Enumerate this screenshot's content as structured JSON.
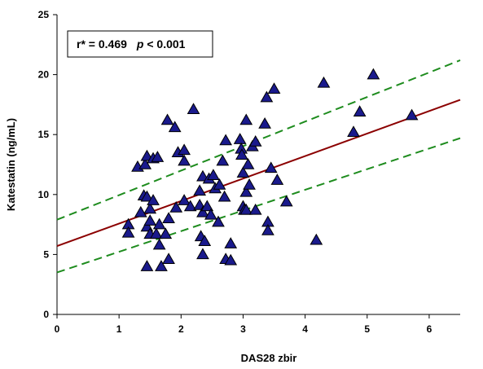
{
  "chart_data": {
    "type": "scatter",
    "xlabel": "DAS28 zbir",
    "ylabel": "Katestatin (ng/mL)",
    "xlim": [
      0,
      6.5
    ],
    "ylim": [
      0,
      25
    ],
    "x_ticks": [
      "0",
      "1",
      "2",
      "3",
      "4",
      "5",
      "6"
    ],
    "y_ticks": [
      "0",
      "5",
      "10",
      "15",
      "20",
      "25"
    ],
    "grid": false,
    "marker": "triangle",
    "colors": {
      "marker_fill": "#1a1a8c",
      "marker_stroke": "#000000",
      "fit_line": "#8b0000",
      "ci_line": "#1e8c1e"
    },
    "annotation": {
      "r_text": "r* = 0.469",
      "p_symbol": "p",
      "p_text": " < 0.001"
    },
    "fit_line": {
      "x": [
        0,
        6.5
      ],
      "y": [
        5.7,
        17.9
      ]
    },
    "ci_upper": {
      "x": [
        0,
        6.5
      ],
      "y": [
        7.9,
        21.2
      ]
    },
    "ci_lower": {
      "x": [
        0,
        6.5
      ],
      "y": [
        3.5,
        14.7
      ]
    },
    "points": [
      {
        "x": 1.15,
        "y": 7.5
      },
      {
        "x": 1.15,
        "y": 6.8
      },
      {
        "x": 1.3,
        "y": 12.3
      },
      {
        "x": 1.35,
        "y": 8.5
      },
      {
        "x": 1.4,
        "y": 9.9
      },
      {
        "x": 1.42,
        "y": 12.5
      },
      {
        "x": 1.45,
        "y": 13.2
      },
      {
        "x": 1.45,
        "y": 9.8
      },
      {
        "x": 1.45,
        "y": 7.3
      },
      {
        "x": 1.45,
        "y": 4.0
      },
      {
        "x": 1.5,
        "y": 8.8
      },
      {
        "x": 1.5,
        "y": 7.8
      },
      {
        "x": 1.5,
        "y": 6.7
      },
      {
        "x": 1.55,
        "y": 13.0
      },
      {
        "x": 1.55,
        "y": 9.5
      },
      {
        "x": 1.6,
        "y": 6.7
      },
      {
        "x": 1.62,
        "y": 13.1
      },
      {
        "x": 1.65,
        "y": 7.5
      },
      {
        "x": 1.65,
        "y": 5.8
      },
      {
        "x": 1.68,
        "y": 4.0
      },
      {
        "x": 1.75,
        "y": 6.7
      },
      {
        "x": 1.78,
        "y": 16.2
      },
      {
        "x": 1.8,
        "y": 8.0
      },
      {
        "x": 1.8,
        "y": 4.6
      },
      {
        "x": 1.9,
        "y": 15.6
      },
      {
        "x": 1.92,
        "y": 8.9
      },
      {
        "x": 1.95,
        "y": 13.5
      },
      {
        "x": 2.05,
        "y": 13.7
      },
      {
        "x": 2.05,
        "y": 12.8
      },
      {
        "x": 2.05,
        "y": 9.5
      },
      {
        "x": 2.15,
        "y": 9.0
      },
      {
        "x": 2.2,
        "y": 17.1
      },
      {
        "x": 2.3,
        "y": 10.3
      },
      {
        "x": 2.3,
        "y": 9.1
      },
      {
        "x": 2.32,
        "y": 6.5
      },
      {
        "x": 2.35,
        "y": 11.5
      },
      {
        "x": 2.35,
        "y": 8.5
      },
      {
        "x": 2.35,
        "y": 5.0
      },
      {
        "x": 2.38,
        "y": 6.1
      },
      {
        "x": 2.42,
        "y": 9.0
      },
      {
        "x": 2.45,
        "y": 11.3
      },
      {
        "x": 2.48,
        "y": 8.3
      },
      {
        "x": 2.52,
        "y": 11.6
      },
      {
        "x": 2.55,
        "y": 10.5
      },
      {
        "x": 2.6,
        "y": 7.7
      },
      {
        "x": 2.62,
        "y": 10.8
      },
      {
        "x": 2.67,
        "y": 12.8
      },
      {
        "x": 2.7,
        "y": 9.8
      },
      {
        "x": 2.72,
        "y": 14.5
      },
      {
        "x": 2.72,
        "y": 4.6
      },
      {
        "x": 2.8,
        "y": 5.9
      },
      {
        "x": 2.8,
        "y": 4.5
      },
      {
        "x": 2.95,
        "y": 14.6
      },
      {
        "x": 2.97,
        "y": 13.8
      },
      {
        "x": 2.98,
        "y": 13.3
      },
      {
        "x": 3.0,
        "y": 11.8
      },
      {
        "x": 3.0,
        "y": 9.0
      },
      {
        "x": 3.02,
        "y": 8.7
      },
      {
        "x": 3.05,
        "y": 16.2
      },
      {
        "x": 3.05,
        "y": 10.2
      },
      {
        "x": 3.05,
        "y": 8.7
      },
      {
        "x": 3.08,
        "y": 12.5
      },
      {
        "x": 3.1,
        "y": 10.8
      },
      {
        "x": 3.15,
        "y": 14.0
      },
      {
        "x": 3.2,
        "y": 14.4
      },
      {
        "x": 3.2,
        "y": 8.7
      },
      {
        "x": 3.35,
        "y": 15.9
      },
      {
        "x": 3.38,
        "y": 18.1
      },
      {
        "x": 3.4,
        "y": 7.7
      },
      {
        "x": 3.4,
        "y": 7.0
      },
      {
        "x": 3.45,
        "y": 12.2
      },
      {
        "x": 3.5,
        "y": 18.8
      },
      {
        "x": 3.55,
        "y": 11.2
      },
      {
        "x": 3.7,
        "y": 9.4
      },
      {
        "x": 4.18,
        "y": 6.2
      },
      {
        "x": 4.3,
        "y": 19.3
      },
      {
        "x": 4.78,
        "y": 15.2
      },
      {
        "x": 4.88,
        "y": 16.9
      },
      {
        "x": 5.1,
        "y": 20.0
      },
      {
        "x": 5.72,
        "y": 16.6
      }
    ]
  }
}
